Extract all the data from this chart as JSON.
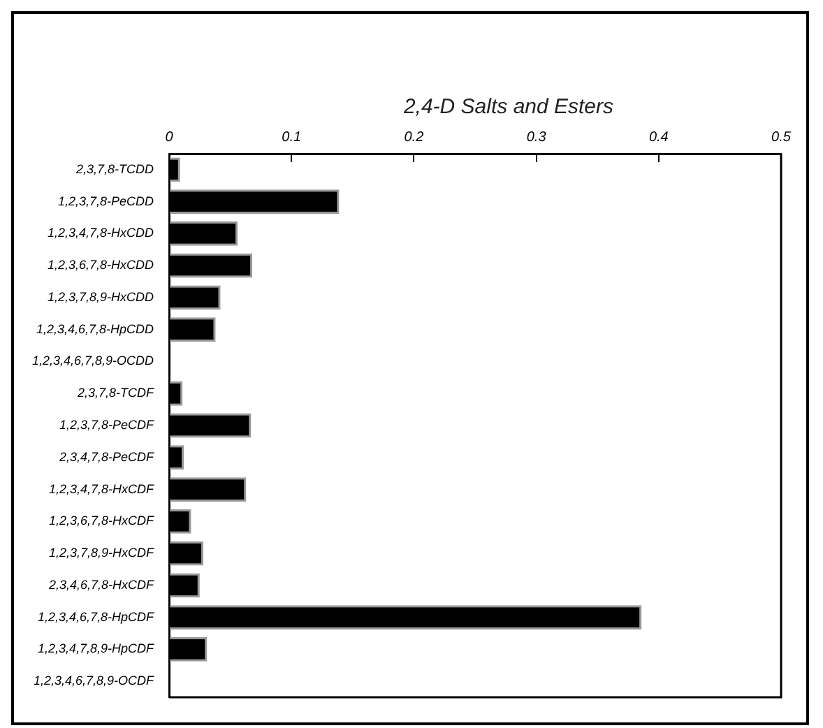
{
  "chart_data": {
    "type": "bar",
    "orientation": "horizontal",
    "title": "2,4-D Salts and Esters",
    "categories": [
      "2,3,7,8-TCDD",
      "1,2,3,7,8-PeCDD",
      "1,2,3,4,7,8-HxCDD",
      "1,2,3,6,7,8-HxCDD",
      "1,2,3,7,8,9-HxCDD",
      "1,2,3,4,6,7,8-HpCDD",
      "1,2,3,4,6,7,8,9-OCDD",
      "2,3,7,8-TCDF",
      "1,2,3,7,8-PeCDF",
      "2,3,4,7,8-PeCDF",
      "1,2,3,4,7,8-HxCDF",
      "1,2,3,6,7,8-HxCDF",
      "1,2,3,7,8,9-HxCDF",
      "2,3,4,6,7,8-HxCDF",
      "1,2,3,4,6,7,8-HpCDF",
      "1,2,3,4,7,8,9-HpCDF",
      "1,2,3,4,6,7,8,9-OCDF"
    ],
    "values": [
      0.009,
      0.139,
      0.056,
      0.068,
      0.042,
      0.038,
      0,
      0.011,
      0.067,
      0.012,
      0.063,
      0.018,
      0.028,
      0.025,
      0.386,
      0.031,
      0
    ],
    "color": "#000000",
    "xlim": [
      0,
      0.5
    ],
    "xticks": [
      0,
      0.1,
      0.2,
      0.3,
      0.4,
      0.5
    ],
    "grid": false,
    "legend": false
  }
}
